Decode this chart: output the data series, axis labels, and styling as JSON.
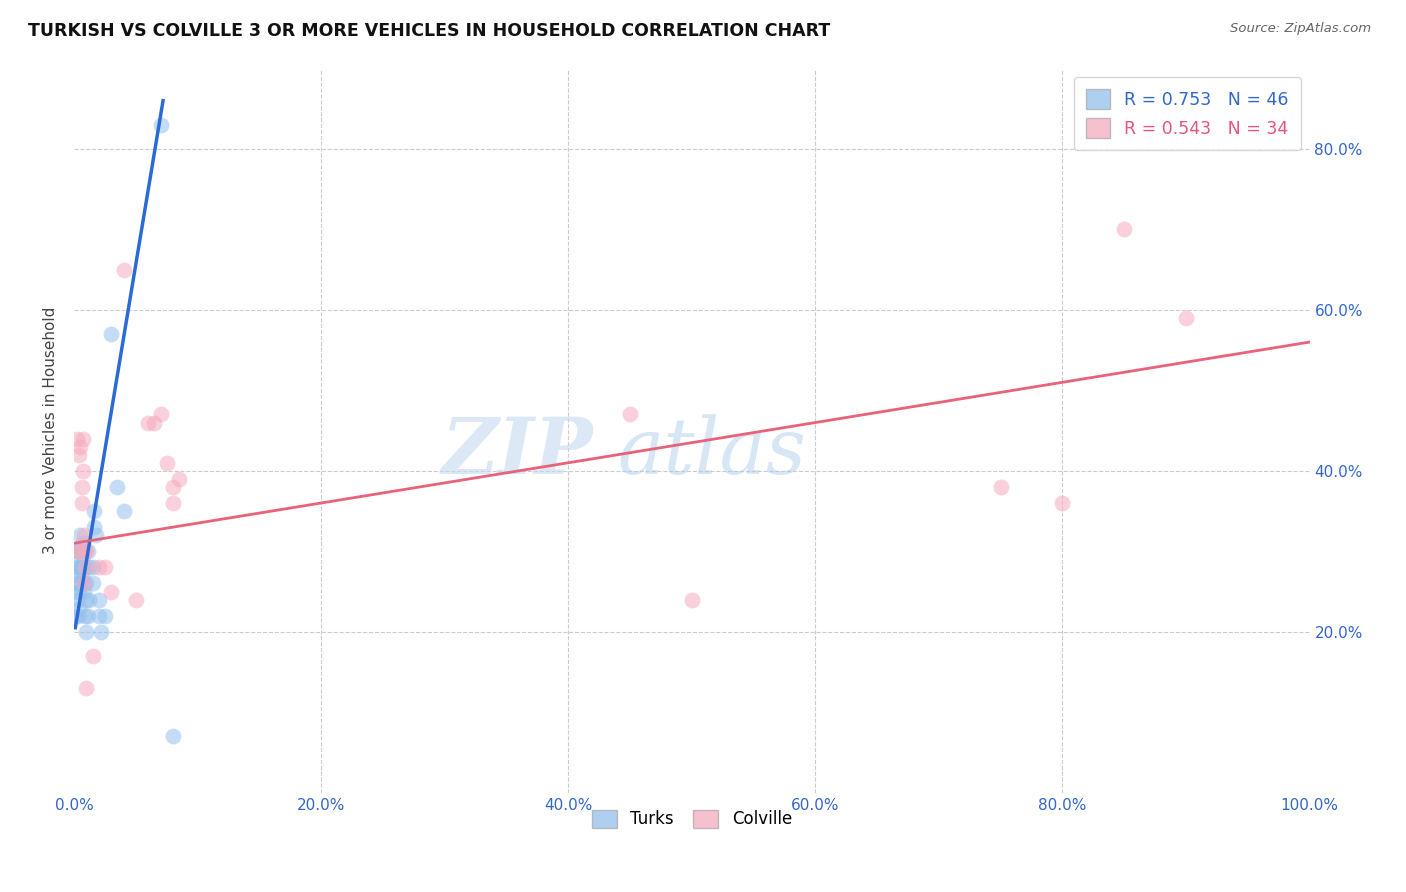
{
  "title": "TURKISH VS COLVILLE 3 OR MORE VEHICLES IN HOUSEHOLD CORRELATION CHART",
  "source": "Source: ZipAtlas.com",
  "ylabel": "3 or more Vehicles in Household",
  "xticklabels": [
    "0.0%",
    "20.0%",
    "40.0%",
    "60.0%",
    "80.0%",
    "100.0%"
  ],
  "xticks": [
    0,
    20,
    40,
    60,
    80,
    100
  ],
  "yticklabels_right": [
    "20.0%",
    "40.0%",
    "60.0%",
    "80.0%"
  ],
  "yticks_right": [
    20,
    40,
    60,
    80
  ],
  "xlim": [
    0,
    100
  ],
  "ylim": [
    0,
    90
  ],
  "turks_color": "#94C0ED",
  "colville_color": "#F5ABBE",
  "turks_line_color": "#2B6CD4",
  "colville_line_color": "#E8627A",
  "background_color": "#FFFFFF",
  "watermark_zip_color": "#C5D9F0",
  "watermark_atlas_color": "#A8C8E8",
  "turks_points": [
    [
      0.1,
      22
    ],
    [
      0.1,
      25
    ],
    [
      0.2,
      27
    ],
    [
      0.2,
      30
    ],
    [
      0.2,
      28
    ],
    [
      0.3,
      26
    ],
    [
      0.3,
      24
    ],
    [
      0.3,
      22
    ],
    [
      0.3,
      30
    ],
    [
      0.4,
      28
    ],
    [
      0.4,
      25
    ],
    [
      0.4,
      23
    ],
    [
      0.5,
      26
    ],
    [
      0.5,
      28
    ],
    [
      0.5,
      30
    ],
    [
      0.5,
      32
    ],
    [
      0.6,
      27
    ],
    [
      0.6,
      29
    ],
    [
      0.7,
      31
    ],
    [
      0.7,
      28
    ],
    [
      0.8,
      30
    ],
    [
      0.8,
      26
    ],
    [
      0.8,
      25
    ],
    [
      0.9,
      28
    ],
    [
      0.9,
      22
    ],
    [
      1.0,
      24
    ],
    [
      1.0,
      20
    ],
    [
      1.0,
      26
    ],
    [
      1.1,
      22
    ],
    [
      1.1,
      30
    ],
    [
      1.2,
      28
    ],
    [
      1.2,
      24
    ],
    [
      1.5,
      28
    ],
    [
      1.5,
      26
    ],
    [
      1.6,
      33
    ],
    [
      1.6,
      35
    ],
    [
      1.8,
      32
    ],
    [
      2.0,
      24
    ],
    [
      2.0,
      22
    ],
    [
      2.2,
      20
    ],
    [
      2.5,
      22
    ],
    [
      3.0,
      57
    ],
    [
      3.5,
      38
    ],
    [
      4.0,
      35
    ],
    [
      7.0,
      83
    ],
    [
      8.0,
      7
    ]
  ],
  "colville_points": [
    [
      0.2,
      44
    ],
    [
      0.3,
      30
    ],
    [
      0.4,
      42
    ],
    [
      0.5,
      43
    ],
    [
      0.5,
      30
    ],
    [
      0.6,
      38
    ],
    [
      0.6,
      36
    ],
    [
      0.7,
      44
    ],
    [
      0.7,
      40
    ],
    [
      0.8,
      32
    ],
    [
      0.8,
      26
    ],
    [
      0.9,
      30
    ],
    [
      0.9,
      28
    ],
    [
      1.0,
      30
    ],
    [
      1.0,
      13
    ],
    [
      1.5,
      17
    ],
    [
      2.0,
      28
    ],
    [
      2.5,
      28
    ],
    [
      3.0,
      25
    ],
    [
      4.0,
      65
    ],
    [
      5.0,
      24
    ],
    [
      6.0,
      46
    ],
    [
      6.5,
      46
    ],
    [
      7.0,
      47
    ],
    [
      7.5,
      41
    ],
    [
      8.0,
      38
    ],
    [
      8.0,
      36
    ],
    [
      8.5,
      39
    ],
    [
      45.0,
      47
    ],
    [
      50.0,
      24
    ],
    [
      85.0,
      70
    ],
    [
      90.0,
      59
    ],
    [
      75.0,
      38
    ],
    [
      80.0,
      36
    ]
  ],
  "turks_trend_x": [
    0.1,
    7.2
  ],
  "turks_trend_y": [
    20.5,
    86.0
  ],
  "colville_trend_x": [
    0.0,
    100.0
  ],
  "colville_trend_y": [
    31.0,
    56.0
  ]
}
